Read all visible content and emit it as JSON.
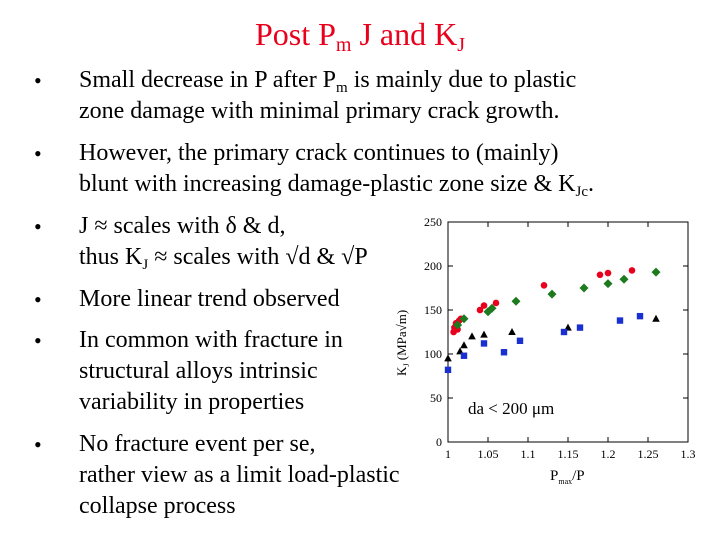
{
  "slide": {
    "title_pre": "Post P",
    "title_sub": "m",
    "title_mid": " J and K",
    "title_sub2": "J"
  },
  "bullets": [
    {
      "l1a": "Small decrease in P after P",
      "l1sub": "m",
      "l1b": " is mainly due to plastic",
      "l2": "zone damage with minimal primary crack growth."
    },
    {
      "l1": "However, the primary crack continues to (mainly)",
      "l2a": "blunt with increasing damage-plastic zone size & K",
      "l2sub": "Jc",
      "l2b": "."
    },
    {
      "l1": "J ≈ scales with δ & d,",
      "l2a": "thus K",
      "l2sub": "J",
      "l2b": " ≈ scales with √d & √P"
    },
    {
      "l1": "More linear trend observed"
    },
    {
      "l1": "In common with fracture in",
      "l2": "structural alloys intrinsic",
      "l3": "variability in properties"
    },
    {
      "l1": "No fracture event per se,",
      "l2": "rather view as a limit load-plastic",
      "l3": "collapse process"
    }
  ],
  "chart_data": {
    "type": "scatter",
    "ylabel": "K",
    "ylabel_sub": "J",
    "ylabel_unit": " (MPa√m)",
    "xlabel": "P",
    "xlabel_sub": "max",
    "xlabel_tail": "/P",
    "annotation": "da < 200 μm",
    "xlim": [
      1.0,
      1.3
    ],
    "ylim": [
      0,
      250
    ],
    "xticks": [
      "1",
      "1.05",
      "1.1",
      "1.15",
      "1.2",
      "1.25",
      "1.3"
    ],
    "yticks": [
      "0",
      "50",
      "100",
      "150",
      "200",
      "250"
    ],
    "colors": {
      "red": "#e8001c",
      "green": "#1e7a1e",
      "blue": "#1a2fd0",
      "black": "#000000"
    },
    "series": [
      {
        "marker": "circle",
        "color": "#e8001c",
        "points": [
          [
            1.007,
            125
          ],
          [
            1.008,
            130
          ],
          [
            1.01,
            135
          ],
          [
            1.012,
            128
          ],
          [
            1.014,
            138
          ],
          [
            1.016,
            140
          ],
          [
            1.04,
            150
          ],
          [
            1.045,
            155
          ],
          [
            1.06,
            158
          ],
          [
            1.12,
            178
          ],
          [
            1.19,
            190
          ],
          [
            1.2,
            192
          ],
          [
            1.23,
            195
          ]
        ]
      },
      {
        "marker": "diamond",
        "color": "#1e7a1e",
        "points": [
          [
            1.012,
            133
          ],
          [
            1.02,
            140
          ],
          [
            1.05,
            148
          ],
          [
            1.055,
            152
          ],
          [
            1.085,
            160
          ],
          [
            1.13,
            168
          ],
          [
            1.17,
            175
          ],
          [
            1.2,
            180
          ],
          [
            1.22,
            185
          ],
          [
            1.26,
            193
          ]
        ]
      },
      {
        "marker": "triangle",
        "color": "#000000",
        "points": [
          [
            1.0,
            95
          ],
          [
            1.015,
            103
          ],
          [
            1.02,
            110
          ],
          [
            1.03,
            120
          ],
          [
            1.045,
            122
          ],
          [
            1.08,
            125
          ],
          [
            1.15,
            130
          ],
          [
            1.26,
            140
          ]
        ]
      },
      {
        "marker": "square",
        "color": "#1a2fd0",
        "points": [
          [
            1.0,
            82
          ],
          [
            1.02,
            98
          ],
          [
            1.045,
            112
          ],
          [
            1.07,
            102
          ],
          [
            1.09,
            115
          ],
          [
            1.145,
            125
          ],
          [
            1.165,
            130
          ],
          [
            1.215,
            138
          ],
          [
            1.24,
            143
          ]
        ]
      }
    ]
  }
}
